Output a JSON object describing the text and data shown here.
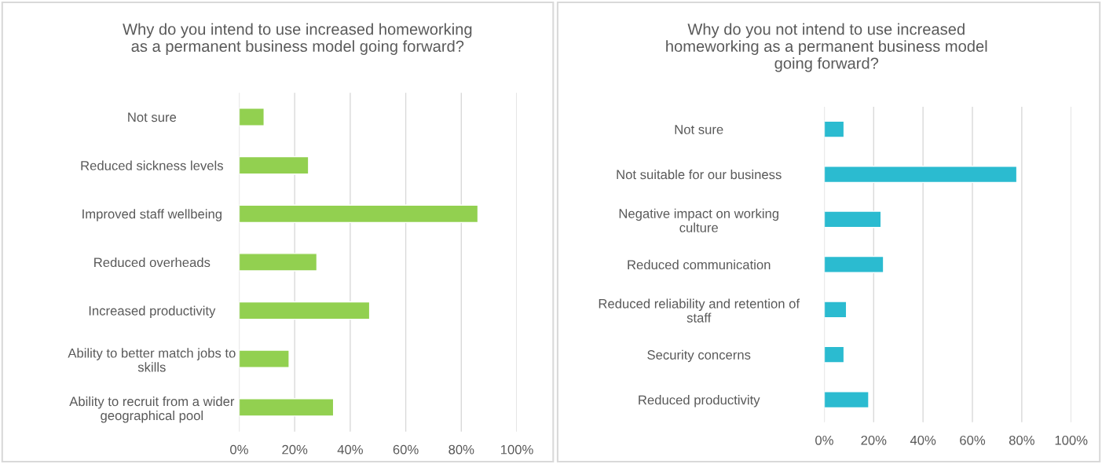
{
  "chart_data": [
    {
      "type": "bar",
      "orientation": "horizontal",
      "title": "Why do you intend to use increased homeworking\nas a permanent business model going forward?",
      "categories": [
        "Not sure",
        "Reduced sickness levels",
        "Improved staff wellbeing",
        "Reduced overheads",
        "Increased productivity",
        "Ability to better match jobs to\nskills",
        "Ability to recruit from a wider\ngeographical pool"
      ],
      "values": [
        9,
        25,
        86,
        28,
        47,
        18,
        34
      ],
      "color": "#92d050",
      "xlim": [
        0,
        100
      ],
      "xticks": [
        {
          "value": 0,
          "label": "0%"
        },
        {
          "value": 20,
          "label": "20%"
        },
        {
          "value": 40,
          "label": "40%"
        },
        {
          "value": 60,
          "label": "60%"
        },
        {
          "value": 80,
          "label": "80%"
        },
        {
          "value": 100,
          "label": "100%"
        }
      ],
      "grid": "x",
      "legend": false
    },
    {
      "type": "bar",
      "orientation": "horizontal",
      "title": "Why do you not intend to use increased\nhomeworking as a permanent business model\ngoing forward?",
      "categories": [
        "Not sure",
        "Not suitable for our business",
        "Negative impact on working\nculture",
        "Reduced communication",
        "Reduced reliability and retention of\nstaff",
        "Security concerns",
        "Reduced productivity"
      ],
      "values": [
        8,
        78,
        23,
        24,
        9,
        8,
        18
      ],
      "color": "#2bbbd0",
      "xlim": [
        0,
        100
      ],
      "xticks": [
        {
          "value": 0,
          "label": "0%"
        },
        {
          "value": 20,
          "label": "20%"
        },
        {
          "value": 40,
          "label": "40%"
        },
        {
          "value": 60,
          "label": "60%"
        },
        {
          "value": 80,
          "label": "80%"
        },
        {
          "value": 100,
          "label": "100%"
        }
      ],
      "grid": "x",
      "legend": false
    }
  ]
}
